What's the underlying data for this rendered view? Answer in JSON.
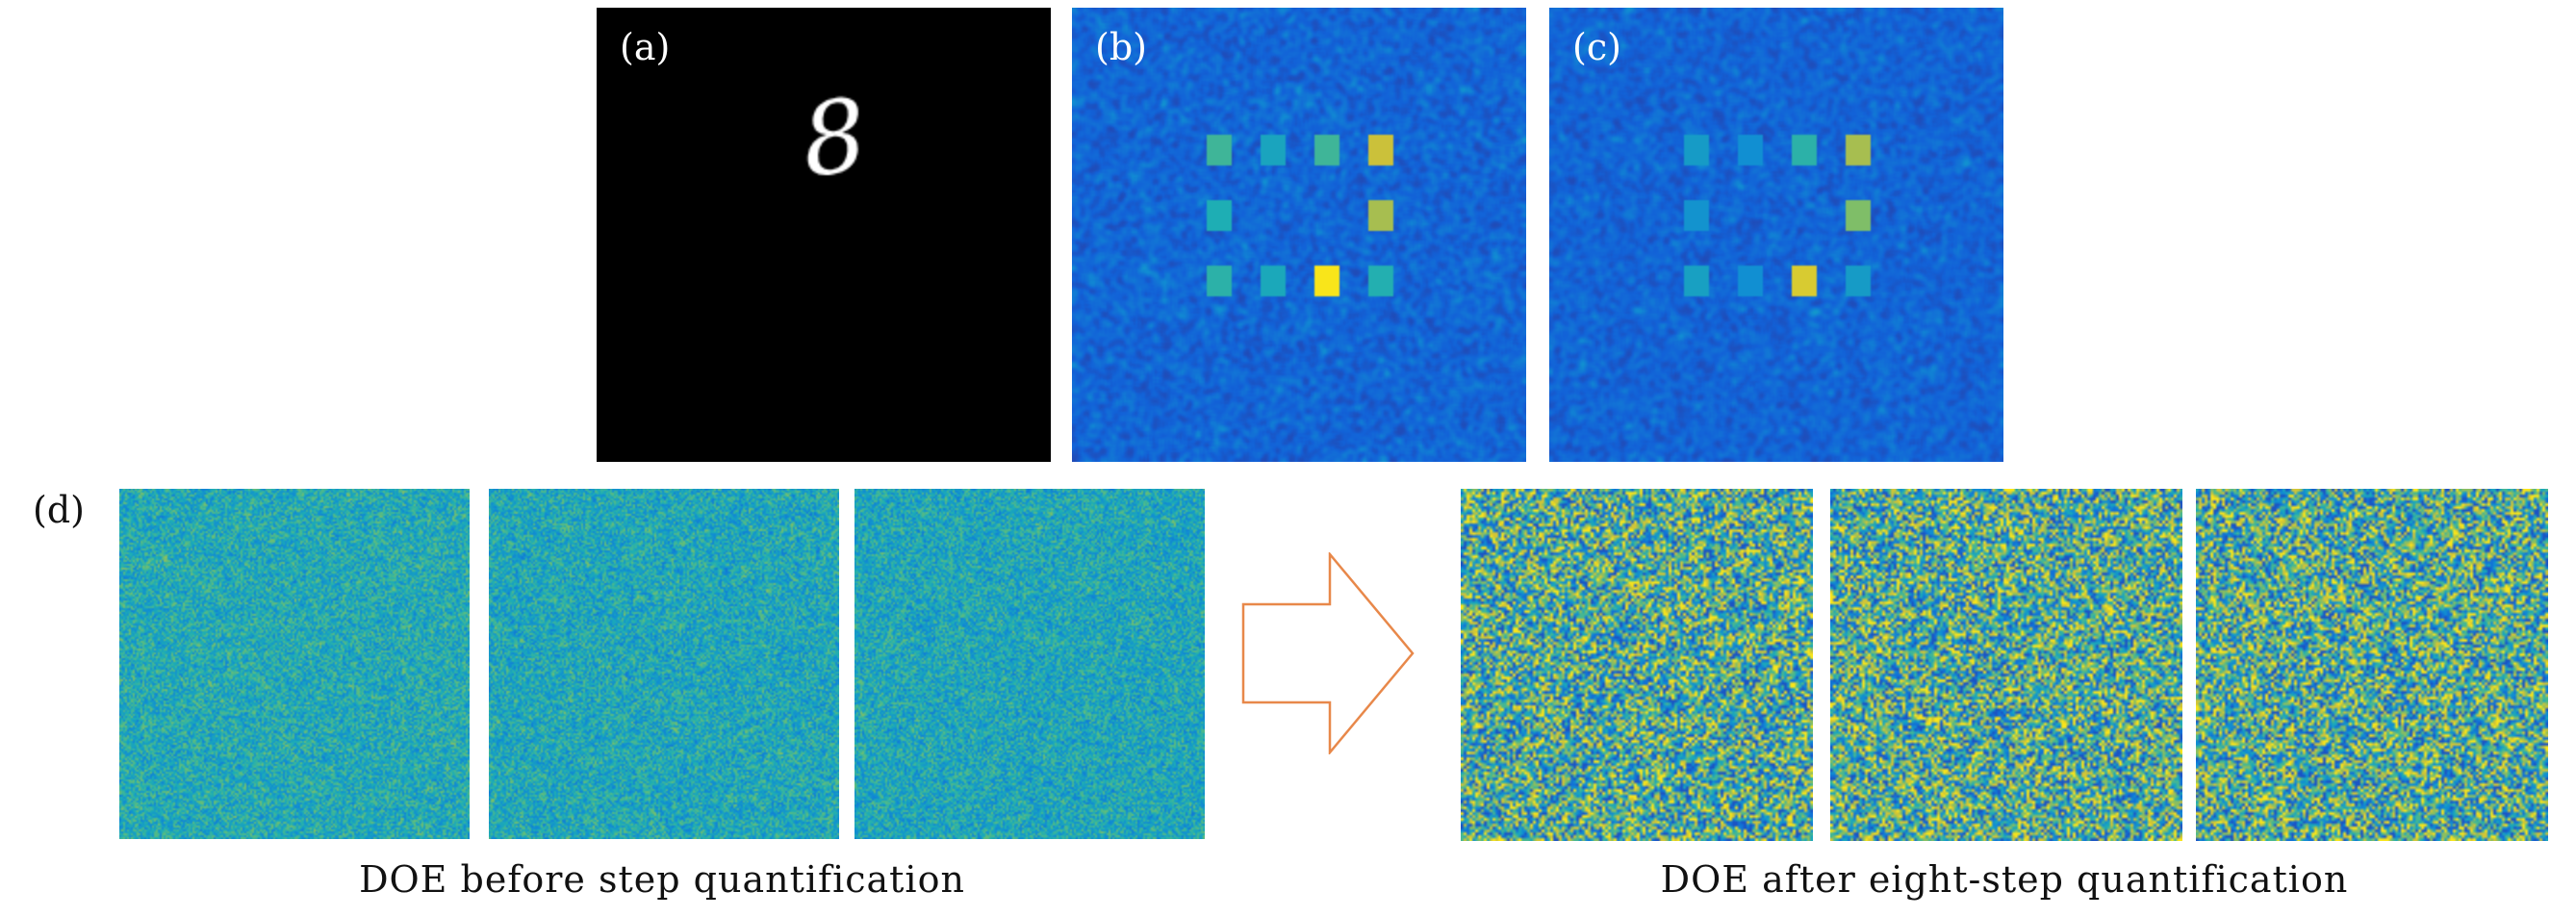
{
  "figure": {
    "panel_a": {
      "label": "(a)",
      "digit": "8"
    },
    "panel_b": {
      "label": "(b)"
    },
    "panel_c": {
      "label": "(c)"
    },
    "panel_d": {
      "label": "(d)"
    },
    "captions": {
      "before": "DOE before step quantification",
      "after": "DOE after eight-step quantification"
    },
    "colors": {
      "background_dark": "#000000",
      "heatmap_low": "#2a3da8",
      "heatmap_high": "#f9e51a",
      "arrow_stroke": "#e8884a"
    }
  }
}
